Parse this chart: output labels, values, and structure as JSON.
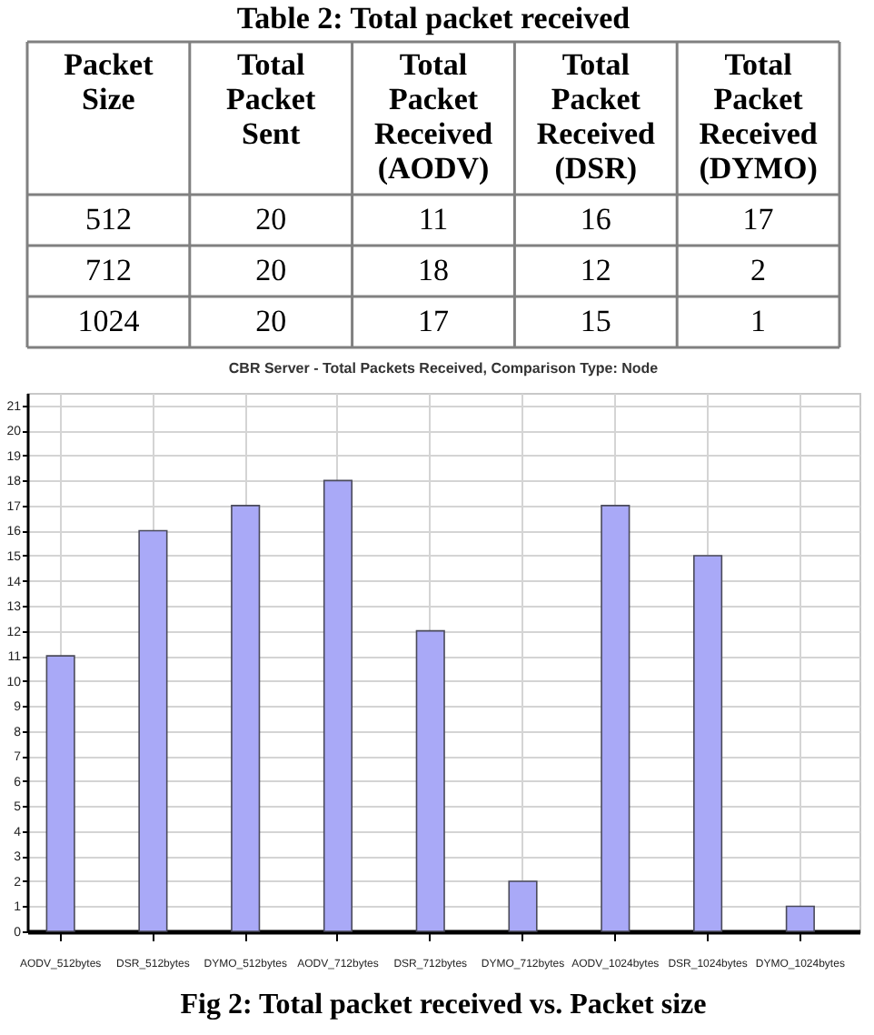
{
  "chart_data": [
    {
      "type": "other",
      "title": "Table 2: Total packet received",
      "categories": [
        "Packet Size",
        "Total Packet Sent",
        "Total Packet Received (AODV)",
        "Total Packet Received (DSR)",
        "Total Packet Received (DYMO)"
      ],
      "annotations": [
        "512",
        "20",
        "11",
        "16",
        "17",
        "712",
        "20",
        "18",
        "12",
        "2",
        "1024",
        "20",
        "17",
        "15",
        "1"
      ]
    },
    {
      "type": "bar",
      "title": "CBR Server - Total Packets Received, Comparison Type: Node",
      "categories": [
        "AODV_512bytes",
        "DSR_512bytes",
        "DYMO_512bytes",
        "AODV_712bytes",
        "DSR_712bytes",
        "DYMO_712bytes",
        "AODV_1024bytes",
        "DSR_1024bytes",
        "DYMO_1024bytes"
      ],
      "values": [
        11,
        16,
        17,
        18,
        12,
        2,
        17,
        15,
        1
      ],
      "color": "#a9a9f7",
      "ylim": [
        0,
        21.5
      ],
      "yticks": [
        0,
        1,
        2,
        3,
        4,
        5,
        6,
        7,
        8,
        9,
        10,
        11,
        12,
        13,
        14,
        15,
        16,
        17,
        18,
        19,
        20,
        21
      ],
      "grid": true,
      "annotations": [
        "Fig 2: Total packet received vs. Packet size"
      ]
    }
  ]
}
